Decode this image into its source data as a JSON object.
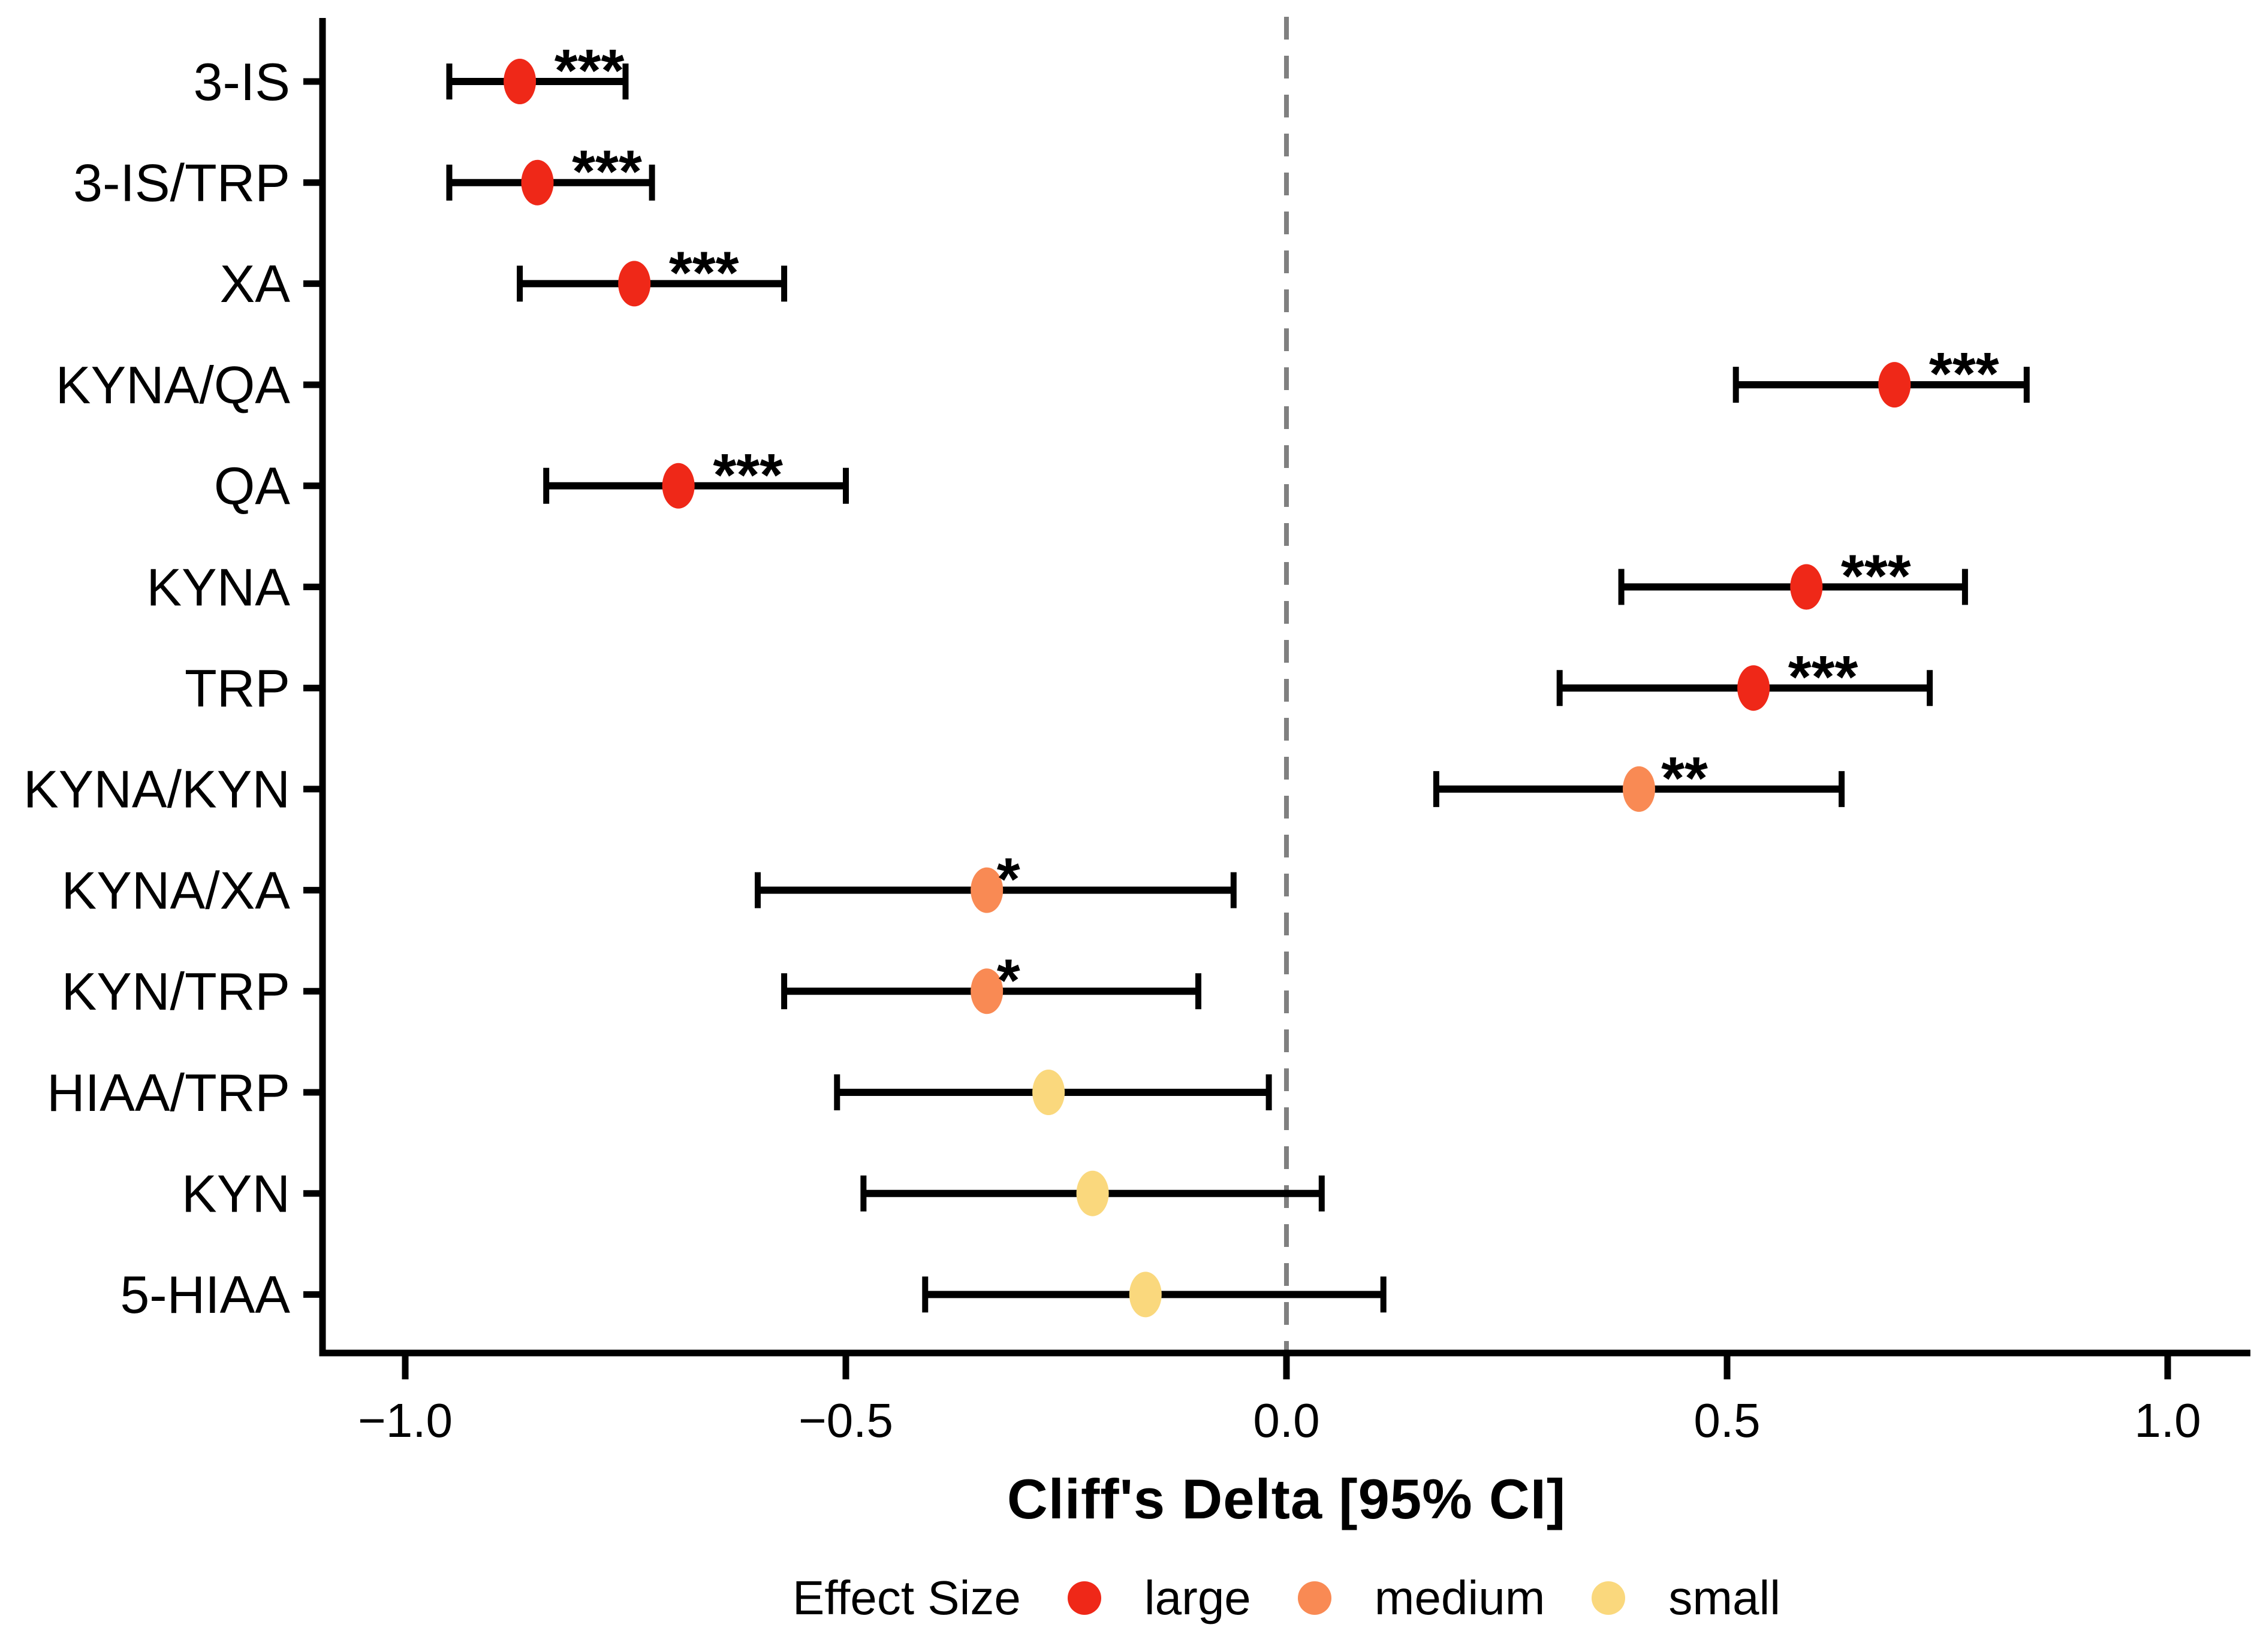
{
  "figure": {
    "background": "#FFFFFF"
  },
  "legend": {
    "title": "Effect Size",
    "entries": [
      {
        "label": "large",
        "effect": "large",
        "color": "#EF2818"
      },
      {
        "label": "medium",
        "effect": "medium",
        "color": "#F98A54"
      },
      {
        "label": "small",
        "effect": "small",
        "color": "#FAD87D"
      }
    ]
  },
  "chart_data": {
    "type": "scatter",
    "subtype": "forest-plot-dot-with-ci",
    "title": "",
    "xlabel": "Cliff's Delta [95% CI]",
    "ylabel": "",
    "xlim": [
      -1.09,
      1.09
    ],
    "grid": false,
    "legend_position": "bottom",
    "zero_line": {
      "x": 0.0,
      "style": "dashed",
      "color": "#808080"
    },
    "x_ticks": [
      {
        "value": -1.0,
        "label": "−1.0"
      },
      {
        "value": -0.5,
        "label": "−0.5"
      },
      {
        "value": 0.0,
        "label": "0.0"
      },
      {
        "value": 0.5,
        "label": "0.5"
      },
      {
        "value": 1.0,
        "label": "1.0"
      }
    ],
    "categories": [
      "3-IS",
      "3-IS/TRP",
      "XA",
      "KYNA/QA",
      "QA",
      "KYNA",
      "TRP",
      "KYNA/KYN",
      "KYNA/XA",
      "KYN/TRP",
      "HIAA/TRP",
      "KYN",
      "5-HIAA"
    ],
    "effect_colors": {
      "large": "#EF2818",
      "medium": "#F98A54",
      "small": "#FAD87D"
    },
    "series": [
      {
        "name": "Cliff's Delta",
        "points": [
          {
            "category": "3-IS",
            "value": -0.87,
            "ci_low": -0.95,
            "ci_high": -0.75,
            "effect_size": "large",
            "significance": "***"
          },
          {
            "category": "3-IS/TRP",
            "value": -0.85,
            "ci_low": -0.95,
            "ci_high": -0.72,
            "effect_size": "large",
            "significance": "***"
          },
          {
            "category": "XA",
            "value": -0.74,
            "ci_low": -0.87,
            "ci_high": -0.57,
            "effect_size": "large",
            "significance": "***"
          },
          {
            "category": "KYNA/QA",
            "value": 0.69,
            "ci_low": 0.51,
            "ci_high": 0.84,
            "effect_size": "large",
            "significance": "***"
          },
          {
            "category": "QA",
            "value": -0.69,
            "ci_low": -0.84,
            "ci_high": -0.5,
            "effect_size": "large",
            "significance": "***"
          },
          {
            "category": "KYNA",
            "value": 0.59,
            "ci_low": 0.38,
            "ci_high": 0.77,
            "effect_size": "large",
            "significance": "***"
          },
          {
            "category": "TRP",
            "value": 0.53,
            "ci_low": 0.31,
            "ci_high": 0.73,
            "effect_size": "large",
            "significance": "***"
          },
          {
            "category": "KYNA/KYN",
            "value": 0.4,
            "ci_low": 0.17,
            "ci_high": 0.63,
            "effect_size": "medium",
            "significance": "**"
          },
          {
            "category": "KYNA/XA",
            "value": -0.34,
            "ci_low": -0.6,
            "ci_high": -0.06,
            "effect_size": "medium",
            "significance": "*"
          },
          {
            "category": "KYN/TRP",
            "value": -0.34,
            "ci_low": -0.57,
            "ci_high": -0.1,
            "effect_size": "medium",
            "significance": "*"
          },
          {
            "category": "HIAA/TRP",
            "value": -0.27,
            "ci_low": -0.51,
            "ci_high": -0.02,
            "effect_size": "small",
            "significance": ""
          },
          {
            "category": "KYN",
            "value": -0.22,
            "ci_low": -0.48,
            "ci_high": 0.04,
            "effect_size": "small",
            "significance": ""
          },
          {
            "category": "5-HIAA",
            "value": -0.16,
            "ci_low": -0.41,
            "ci_high": 0.11,
            "effect_size": "small",
            "significance": ""
          }
        ]
      }
    ]
  }
}
